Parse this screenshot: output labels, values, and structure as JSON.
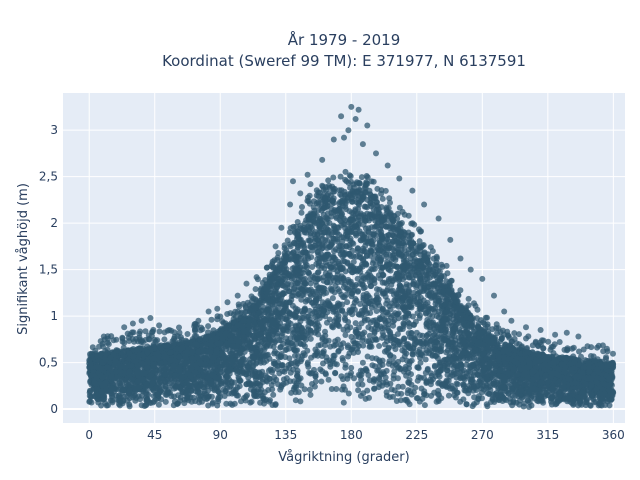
{
  "chart_data": {
    "type": "scatter",
    "title": "År 1979 - 2019",
    "subtitle": "Koordinat (Sweref 99 TM): E 371977, N 6137591",
    "xlabel": "Vågriktning (grader)",
    "ylabel": "Signifikant våghöjd (m)",
    "xlim": [
      -18,
      368
    ],
    "ylim": [
      -0.15,
      3.4
    ],
    "x_ticks": [
      0,
      45,
      90,
      135,
      180,
      225,
      270,
      315,
      360
    ],
    "x_tick_labels": [
      "0",
      "45",
      "90",
      "135",
      "180",
      "225",
      "270",
      "315",
      "360"
    ],
    "y_ticks": [
      0,
      0.5,
      1,
      1.5,
      2,
      2.5,
      3
    ],
    "y_tick_labels": [
      "0",
      "0,5",
      "1",
      "1,5",
      "2",
      "2,5",
      "3"
    ],
    "grid": true,
    "marker_color": "#2f5870",
    "plot_background": "#e5ecf6",
    "series": [
      {
        "envelope_x": [
          0,
          10,
          20,
          30,
          45,
          60,
          75,
          90,
          105,
          120,
          135,
          150,
          165,
          180,
          195,
          210,
          225,
          240,
          255,
          270,
          285,
          300,
          315,
          330,
          345,
          360
        ],
        "envelope_y": [
          0.6,
          0.6,
          0.62,
          0.65,
          0.68,
          0.7,
          0.75,
          0.85,
          1.0,
          1.3,
          1.7,
          2.1,
          2.3,
          2.4,
          2.3,
          2.1,
          1.8,
          1.5,
          1.15,
          0.85,
          0.7,
          0.62,
          0.58,
          0.55,
          0.52,
          0.5
        ],
        "outlier_points": [
          [
            180,
            3.25
          ],
          [
            185,
            3.22
          ],
          [
            173,
            3.15
          ],
          [
            183,
            3.12
          ],
          [
            178,
            3.0
          ],
          [
            191,
            3.05
          ],
          [
            168,
            2.9
          ],
          [
            175,
            2.92
          ],
          [
            188,
            2.85
          ],
          [
            197,
            2.75
          ],
          [
            160,
            2.68
          ],
          [
            205,
            2.62
          ],
          [
            150,
            2.52
          ],
          [
            213,
            2.48
          ],
          [
            140,
            2.45
          ],
          [
            222,
            2.35
          ],
          [
            230,
            2.2
          ],
          [
            240,
            2.05
          ],
          [
            248,
            1.82
          ],
          [
            255,
            1.62
          ],
          [
            262,
            1.5
          ],
          [
            270,
            1.4
          ],
          [
            278,
            1.22
          ],
          [
            285,
            1.05
          ],
          [
            290,
            0.95
          ],
          [
            300,
            0.88
          ],
          [
            310,
            0.85
          ],
          [
            320,
            0.8
          ],
          [
            328,
            0.82
          ],
          [
            336,
            0.78
          ],
          [
            350,
            0.68
          ],
          [
            356,
            0.62
          ],
          [
            10,
            0.78
          ],
          [
            24,
            0.88
          ],
          [
            30,
            0.92
          ],
          [
            36,
            0.95
          ],
          [
            42,
            0.98
          ],
          [
            48,
            0.9
          ],
          [
            55,
            0.85
          ],
          [
            62,
            0.82
          ],
          [
            75,
            0.95
          ],
          [
            82,
            1.05
          ],
          [
            88,
            1.08
          ],
          [
            95,
            1.15
          ],
          [
            102,
            1.22
          ],
          [
            108,
            1.35
          ],
          [
            115,
            1.42
          ],
          [
            122,
            1.52
          ],
          [
            128,
            1.75
          ],
          [
            132,
            1.95
          ],
          [
            138,
            2.2
          ],
          [
            145,
            2.32
          ],
          [
            152,
            2.42
          ]
        ]
      }
    ]
  }
}
